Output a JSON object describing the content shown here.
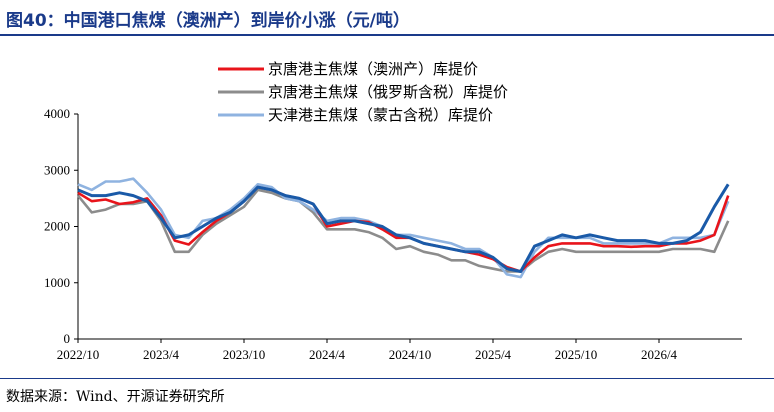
{
  "header": {
    "title": "图40：中国港口焦煤（澳洲产）到岸价小涨（元/吨）"
  },
  "footer": {
    "source": "数据来源：Wind、开源证券研究所"
  },
  "chart_data": {
    "type": "line",
    "xlabel": "",
    "ylabel": "",
    "ylim": [
      0,
      4000
    ],
    "yticks": [
      0,
      1000,
      2000,
      3000,
      4000
    ],
    "xlim": [
      "2022-10",
      "2026-10"
    ],
    "xticks": [
      "2022/10",
      "2023/4",
      "2023/10",
      "2024/4",
      "2024/10",
      "2025/4",
      "2025/10",
      "2026/4"
    ],
    "grid": false,
    "legend_position": "top-right",
    "series": [
      {
        "name": "京唐港主焦煤（澳洲产）库提价",
        "color": "#e8141b",
        "x": [
          "2022-10",
          "2022-11",
          "2022-12",
          "2023-01",
          "2023-02",
          "2023-03",
          "2023-04",
          "2023-05",
          "2023-06",
          "2023-07",
          "2023-08",
          "2023-09",
          "2023-10",
          "2023-11",
          "2023-12",
          "2024-01",
          "2024-02",
          "2024-03",
          "2024-04",
          "2024-05",
          "2024-06",
          "2024-07",
          "2024-08",
          "2024-09",
          "2024-10",
          "2024-11",
          "2024-12",
          "2025-01",
          "2025-02",
          "2025-03",
          "2025-04",
          "2025-05",
          "2025-06",
          "2025-07",
          "2025-08",
          "2025-09",
          "2025-10",
          "2025-11",
          "2025-12",
          "2026-01",
          "2026-02",
          "2026-03",
          "2026-04",
          "2026-05",
          "2026-06",
          "2026-07",
          "2026-08",
          "2026-09"
        ],
        "values": [
          2600,
          2450,
          2480,
          2400,
          2430,
          2500,
          2200,
          1750,
          1680,
          1900,
          2100,
          2250,
          2450,
          2700,
          2650,
          2550,
          2500,
          2400,
          2000,
          2050,
          2100,
          2080,
          1950,
          1800,
          1800,
          1700,
          1650,
          1600,
          1550,
          1500,
          1420,
          1280,
          1200,
          1450,
          1650,
          1700,
          1700,
          1700,
          1650,
          1650,
          1640,
          1650,
          1650,
          1700,
          1700,
          1750,
          1850,
          2550
        ]
      },
      {
        "name": "京唐港主焦煤（俄罗斯含税）库提价",
        "color": "#8c8c8c",
        "x": [
          "2022-10",
          "2022-11",
          "2022-12",
          "2023-01",
          "2023-02",
          "2023-03",
          "2023-04",
          "2023-05",
          "2023-06",
          "2023-07",
          "2023-08",
          "2023-09",
          "2023-10",
          "2023-11",
          "2023-12",
          "2024-01",
          "2024-02",
          "2024-03",
          "2024-04",
          "2024-05",
          "2024-06",
          "2024-07",
          "2024-08",
          "2024-09",
          "2024-10",
          "2024-11",
          "2024-12",
          "2025-01",
          "2025-02",
          "2025-03",
          "2025-04",
          "2025-05",
          "2025-06",
          "2025-07",
          "2025-08",
          "2025-09",
          "2025-10",
          "2025-11",
          "2025-12",
          "2026-01",
          "2026-02",
          "2026-03",
          "2026-04",
          "2026-05",
          "2026-06",
          "2026-07",
          "2026-08",
          "2026-09"
        ],
        "values": [
          2550,
          2250,
          2300,
          2400,
          2400,
          2450,
          2100,
          1550,
          1550,
          1850,
          2050,
          2200,
          2350,
          2650,
          2600,
          2500,
          2450,
          2250,
          1950,
          1950,
          1950,
          1900,
          1800,
          1600,
          1650,
          1550,
          1500,
          1400,
          1400,
          1300,
          1250,
          1200,
          1200,
          1400,
          1550,
          1600,
          1550,
          1550,
          1550,
          1550,
          1550,
          1550,
          1550,
          1600,
          1600,
          1600,
          1550,
          2100
        ]
      },
      {
        "name": "天津港主焦煤（蒙古含税）库提价",
        "color": "#8fb3e0",
        "x": [
          "2022-10",
          "2022-11",
          "2022-12",
          "2023-01",
          "2023-02",
          "2023-03",
          "2023-04",
          "2023-05",
          "2023-06",
          "2023-07",
          "2023-08",
          "2023-09",
          "2023-10",
          "2023-11",
          "2023-12",
          "2024-01",
          "2024-02",
          "2024-03",
          "2024-04",
          "2024-05",
          "2024-06",
          "2024-07",
          "2024-08",
          "2024-09",
          "2024-10",
          "2024-11",
          "2024-12",
          "2025-01",
          "2025-02",
          "2025-03",
          "2025-04",
          "2025-05",
          "2025-06",
          "2025-07",
          "2025-08",
          "2025-09",
          "2025-10",
          "2025-11",
          "2025-12",
          "2026-01",
          "2026-02",
          "2026-03",
          "2026-04",
          "2026-05",
          "2026-06",
          "2026-07",
          "2026-08",
          "2026-09"
        ],
        "values": [
          2750,
          2650,
          2800,
          2800,
          2850,
          2600,
          2300,
          1850,
          1800,
          2100,
          2150,
          2300,
          2500,
          2750,
          2700,
          2500,
          2450,
          2300,
          2100,
          2150,
          2150,
          2100,
          2000,
          1850,
          1850,
          1800,
          1750,
          1700,
          1600,
          1600,
          1450,
          1150,
          1100,
          1550,
          1800,
          1800,
          1800,
          1800,
          1700,
          1700,
          1700,
          1700,
          1700,
          1800,
          1800,
          1800,
          1850,
          2450
        ]
      },
      {
        "name": "",
        "color": "#1a5aa8",
        "x": [
          "2022-10",
          "2022-11",
          "2022-12",
          "2023-01",
          "2023-02",
          "2023-03",
          "2023-04",
          "2023-05",
          "2023-06",
          "2023-07",
          "2023-08",
          "2023-09",
          "2023-10",
          "2023-11",
          "2023-12",
          "2024-01",
          "2024-02",
          "2024-03",
          "2024-04",
          "2024-05",
          "2024-06",
          "2024-07",
          "2024-08",
          "2024-09",
          "2024-10",
          "2024-11",
          "2024-12",
          "2025-01",
          "2025-02",
          "2025-03",
          "2025-04",
          "2025-05",
          "2025-06",
          "2025-07",
          "2025-08",
          "2025-09",
          "2025-10",
          "2025-11",
          "2025-12",
          "2026-01",
          "2026-02",
          "2026-03",
          "2026-04",
          "2026-05",
          "2026-06",
          "2026-07",
          "2026-08",
          "2026-09"
        ],
        "values": [
          2650,
          2550,
          2550,
          2600,
          2550,
          2450,
          2150,
          1800,
          1850,
          2000,
          2150,
          2250,
          2450,
          2700,
          2650,
          2550,
          2500,
          2400,
          2050,
          2100,
          2100,
          2050,
          2000,
          1850,
          1800,
          1700,
          1650,
          1600,
          1550,
          1550,
          1450,
          1250,
          1200,
          1650,
          1750,
          1850,
          1800,
          1850,
          1800,
          1750,
          1750,
          1750,
          1700,
          1700,
          1750,
          1900,
          2350,
          2750
        ]
      }
    ]
  }
}
